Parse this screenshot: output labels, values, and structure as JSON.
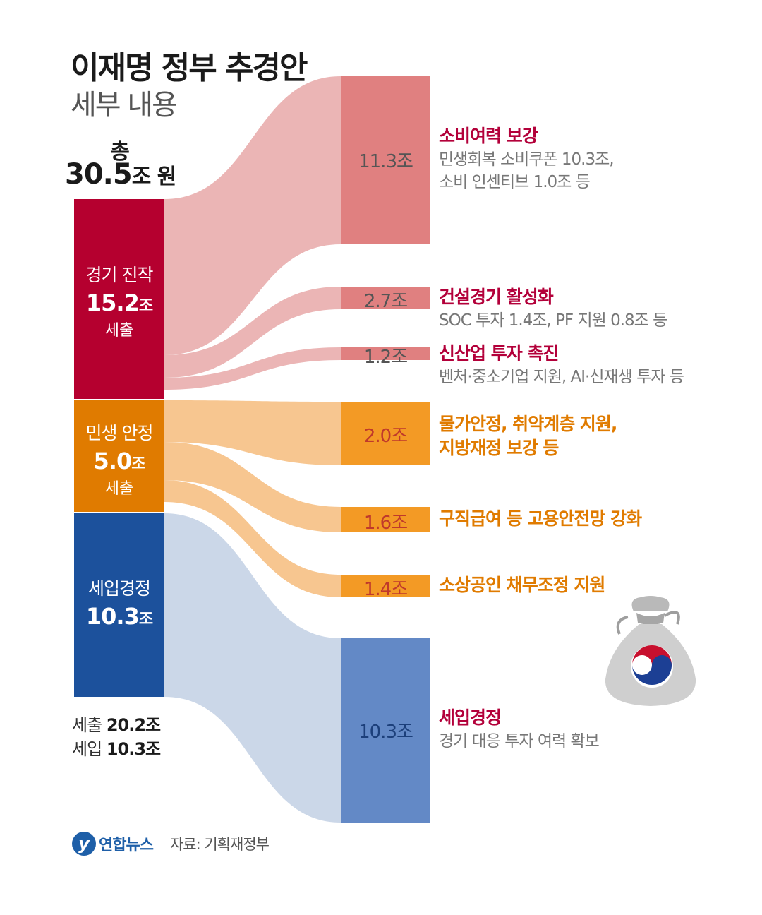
{
  "header": {
    "title": "이재명 정부 추경안",
    "subtitle": "세부 내용"
  },
  "total": {
    "label": "총",
    "value": "30.5",
    "unit": "조 원"
  },
  "sources": [
    {
      "name": "경기 진작",
      "amount": "15.2",
      "unit": "조",
      "kind": "세출",
      "color": "#b5002f"
    },
    {
      "name": "민생 안정",
      "amount": "5.0",
      "unit": "조",
      "kind": "세출",
      "color": "#e07b00"
    },
    {
      "name": "세입경정",
      "amount": "10.3",
      "unit": "조",
      "kind": "",
      "color": "#1c519c"
    }
  ],
  "destinations": [
    {
      "value_label": "11.3조",
      "head": "소비여력 보강",
      "sub": [
        "민생회복 소비쿠폰 10.3조,",
        "소비 인센티브 1.0조 등"
      ],
      "color": "#e08080",
      "text_color": "#b3003a",
      "sub_color": "#6f6f6f",
      "value_color": "#555555",
      "head_black": [
        false
      ]
    },
    {
      "value_label": "2.7조",
      "head": "건설경기 활성화",
      "sub": [
        "SOC 투자 1.4조, PF 지원 0.8조 등"
      ],
      "color": "#e08080",
      "text_color": "#b3003a",
      "value_color": "#555555"
    },
    {
      "value_label": "1.2조",
      "head": "신산업 투자 촉진",
      "sub": [
        "벤처·중소기업 지원, AI·신재생 투자 등"
      ],
      "color": "#e08080",
      "text_color": "#b3003a",
      "value_color": "#555555"
    },
    {
      "value_label": "2.0조",
      "head": "물가안정, 취약계층 지원,",
      "head2": "지방재정 보강 등",
      "sub": [],
      "color": "#f39a25",
      "text_color": "#e07b00",
      "value_color": "#c0392b"
    },
    {
      "value_label": "1.6조",
      "head": "구직급여 등 고용안전망 강화",
      "sub": [],
      "color": "#f39a25",
      "text_color": "#e07b00",
      "value_color": "#c0392b"
    },
    {
      "value_label": "1.4조",
      "head": "소상공인 채무조정 지원",
      "sub": [],
      "color": "#f39a25",
      "text_color": "#e07b00",
      "value_color": "#c0392b"
    },
    {
      "value_label": "10.3조",
      "head": "세입경정",
      "sub": [
        "경기 대응 투자 여력 확보"
      ],
      "color": "#6389c6",
      "text_color": "#b3003a",
      "value_color": "#1c3f7a"
    }
  ],
  "totals": {
    "spend_label": "세출",
    "spend_value": "20.2조",
    "revenue_label": "세입",
    "revenue_value": "10.3조"
  },
  "footer": {
    "logo_mark": "y",
    "logo_text": "연합뉴스",
    "source": "자료: 기획재정부"
  },
  "chart_data": {
    "type": "sankey",
    "title": "이재명 정부 추경안",
    "subtitle": "세부 내용",
    "total": 30.5,
    "unit": "조 원",
    "sources": [
      {
        "name": "경기 진작",
        "value": 15.2,
        "kind": "세출"
      },
      {
        "name": "민생 안정",
        "value": 5.0,
        "kind": "세출"
      },
      {
        "name": "세입경정",
        "value": 10.3
      }
    ],
    "targets": [
      {
        "name": "소비여력 보강",
        "value": 11.3,
        "from": "경기 진작"
      },
      {
        "name": "건설경기 활성화",
        "value": 2.7,
        "from": "경기 진작"
      },
      {
        "name": "신산업 투자 촉진",
        "value": 1.2,
        "from": "경기 진작"
      },
      {
        "name": "물가안정, 취약계층 지원, 지방재정 보강 등",
        "value": 2.0,
        "from": "민생 안정"
      },
      {
        "name": "구직급여 등 고용안전망 강화",
        "value": 1.6,
        "from": "민생 안정"
      },
      {
        "name": "소상공인 채무조정 지원",
        "value": 1.4,
        "from": "민생 안정"
      },
      {
        "name": "세입경정",
        "value": 10.3,
        "from": "세입경정"
      }
    ],
    "summary": {
      "세출": 20.2,
      "세입": 10.3
    }
  }
}
